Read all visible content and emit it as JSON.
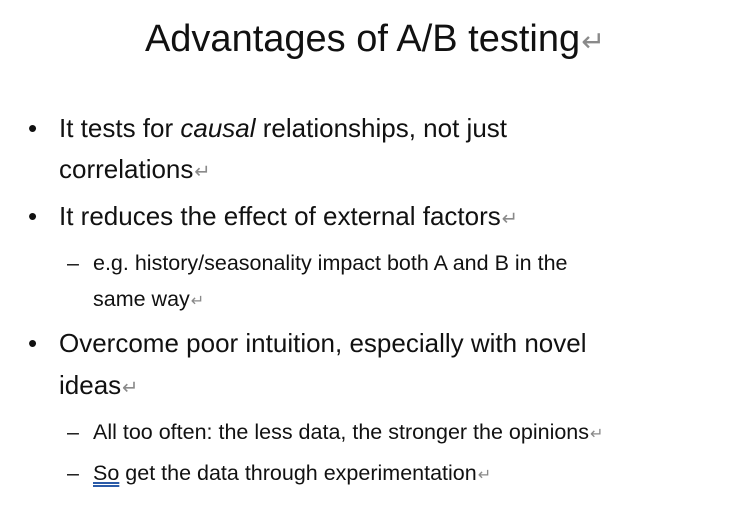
{
  "slide": {
    "title": "Advantages of A/B testing",
    "paragraph_mark": "↵",
    "bullets": [
      {
        "text_before": "It tests for ",
        "emphasis": "causal",
        "text_after": " relationships, not just",
        "continuation": "correlations"
      },
      {
        "text": "It reduces the effect of external factors",
        "sub": [
          {
            "line1": "e.g. history/seasonality impact both A and B in the",
            "line2": "same way"
          }
        ]
      },
      {
        "line1": "Overcome poor intuition, especially with novel",
        "line2": "ideas",
        "sub": [
          {
            "text": "All too often: the less data, the stronger the opinions"
          },
          {
            "underlined": "So",
            "text": " get the data through experimentation"
          }
        ]
      }
    ],
    "bullet_char": "•",
    "dash_char": "–"
  }
}
